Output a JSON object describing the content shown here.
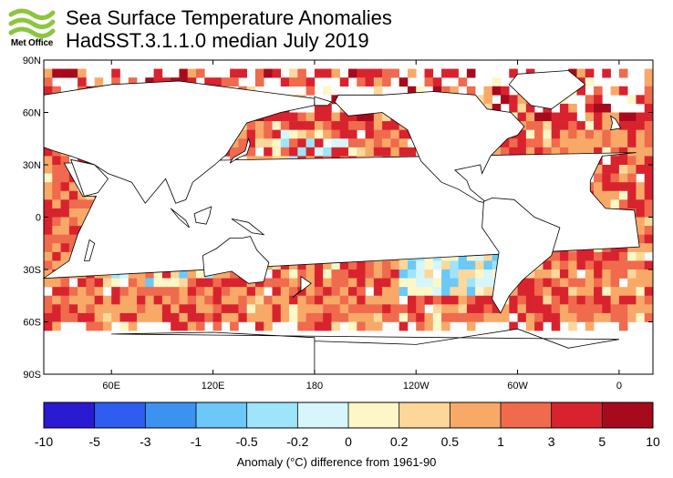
{
  "logo": {
    "name": "Met Office"
  },
  "title": "Sea Surface Temperature Anomalies",
  "subtitle": "HadSST.3.1.1.0 median July 2019",
  "map": {
    "lat_labels": [
      "90N",
      "60N",
      "30N",
      "0",
      "30S",
      "60S",
      "90S"
    ],
    "lon_labels": [
      "60E",
      "120E",
      "180",
      "120W",
      "60W",
      "0"
    ],
    "land_color": "#ffffff",
    "missing_color": "#ffffff",
    "grid_resolution_deg": 5
  },
  "colorbar": {
    "title": "Anomaly (°C) difference from 1961-90",
    "ticks": [
      "-10",
      "-5",
      "-3",
      "-1",
      "-0.5",
      "-0.2",
      "0",
      "0.2",
      "0.5",
      "1",
      "3",
      "5",
      "10"
    ],
    "colors": [
      "#2a1ad2",
      "#2f5df2",
      "#3c92f0",
      "#6bc8f7",
      "#9ee5f9",
      "#d6f6fb",
      "#fdf7c7",
      "#fbd89a",
      "#f8a968",
      "#f06a4d",
      "#d8232e",
      "#a80a1d"
    ]
  }
}
